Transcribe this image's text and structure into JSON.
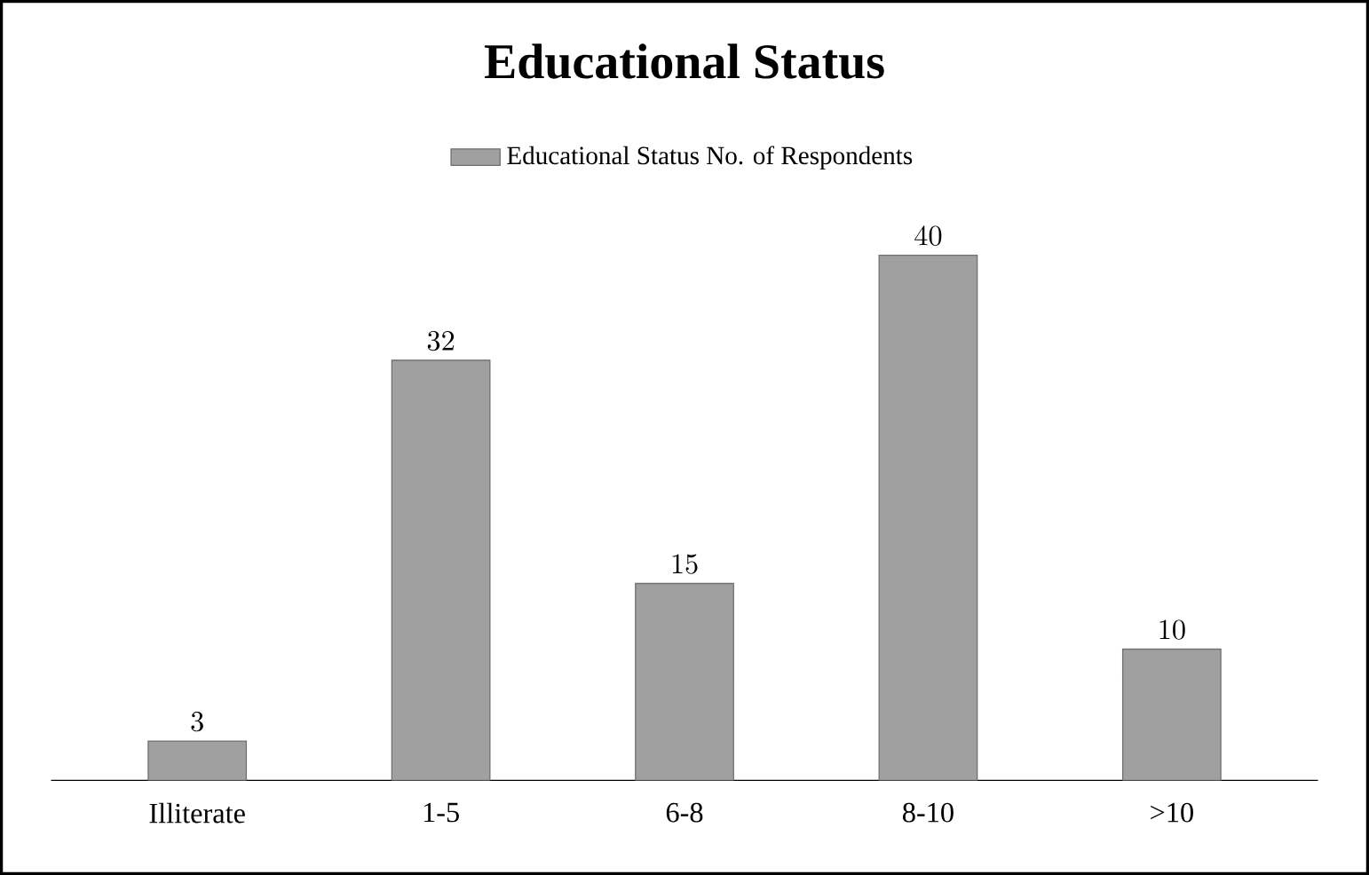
{
  "chart_data": {
    "type": "bar",
    "title": "Educational Status",
    "categories": [
      "Illiterate",
      "1-5",
      "6-8",
      "8-10",
      ">10"
    ],
    "series": [
      {
        "name": "Educational Status No. of Respondents",
        "color": "#a0a0a0",
        "values": [
          3,
          32,
          15,
          40,
          10
        ]
      }
    ],
    "data_labels": true,
    "legend": "top",
    "grid": false
  }
}
